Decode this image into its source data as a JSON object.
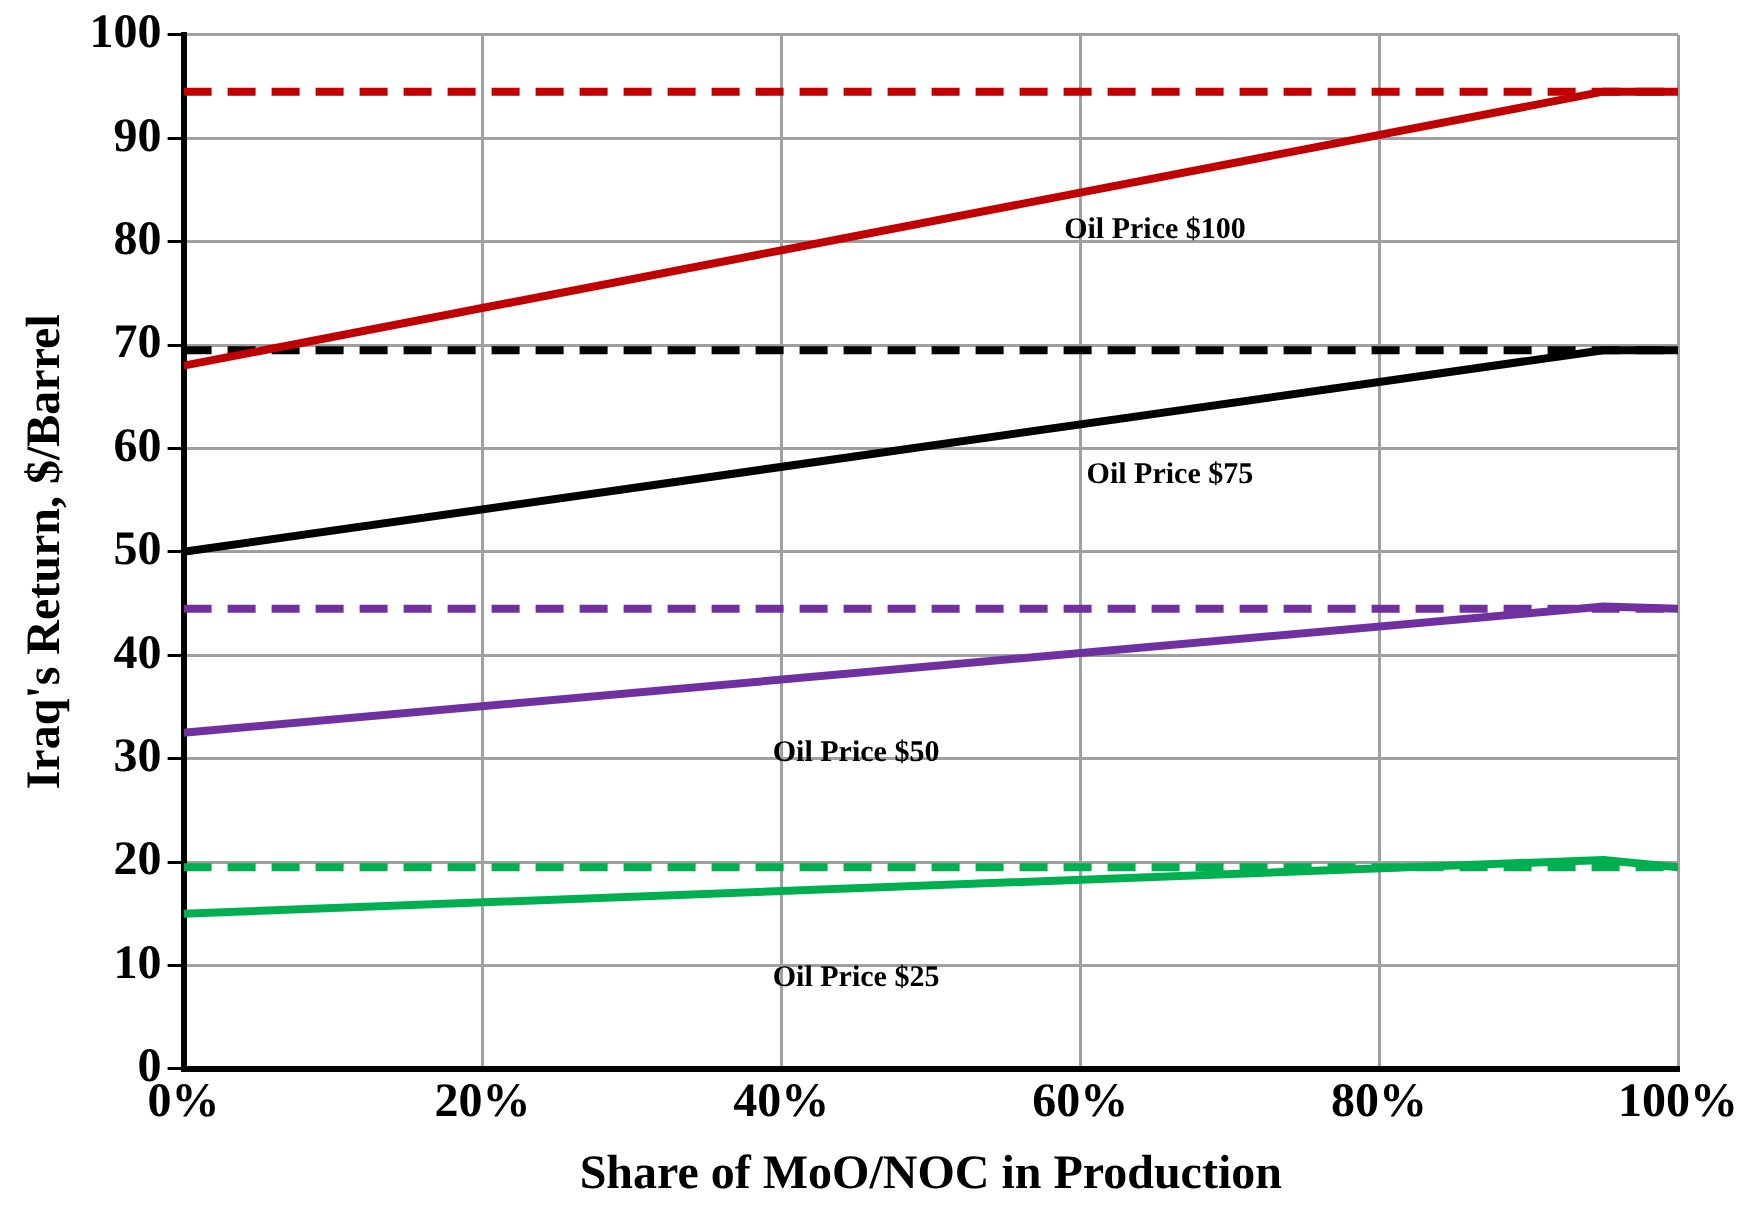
{
  "chart_data": {
    "type": "line",
    "xlabel": "Share of MoO/NOC in Production",
    "ylabel": "Iraq's Return, $/Barrel",
    "xlim": [
      0,
      100
    ],
    "xticks": [
      {
        "value": 0,
        "label": "0%"
      },
      {
        "value": 20,
        "label": "20%"
      },
      {
        "value": 40,
        "label": "40%"
      },
      {
        "value": 60,
        "label": "60%"
      },
      {
        "value": 80,
        "label": "80%"
      },
      {
        "value": 100,
        "label": "100%"
      }
    ],
    "ylim": [
      0,
      100
    ],
    "yticks": [
      0,
      10,
      20,
      30,
      40,
      50,
      60,
      70,
      80,
      90,
      100
    ],
    "grid": true,
    "legend": false,
    "marker": "none",
    "series": [
      {
        "name": "Oil Price $100",
        "color": "#c00000",
        "x": [
          0,
          95,
          100
        ],
        "values": [
          68,
          94.5,
          94.5
        ],
        "line_style": "solid"
      },
      {
        "color": "#c00000",
        "x": [
          0,
          100
        ],
        "values": [
          94.5,
          94.5
        ],
        "line_style": "dashed"
      },
      {
        "name": "Oil Price $75",
        "color": "#000000",
        "x": [
          0,
          95,
          100
        ],
        "values": [
          50,
          69.5,
          69.5
        ],
        "line_style": "solid"
      },
      {
        "color": "#000000",
        "x": [
          0,
          100
        ],
        "values": [
          69.5,
          69.5
        ],
        "line_style": "dashed"
      },
      {
        "name": "Oil Price $50",
        "color": "#7030a0",
        "x": [
          0,
          95,
          100
        ],
        "values": [
          32.5,
          44.7,
          44.5
        ],
        "line_style": "solid"
      },
      {
        "color": "#7030a0",
        "x": [
          0,
          100
        ],
        "values": [
          44.5,
          44.5
        ],
        "line_style": "dashed"
      },
      {
        "name": "Oil Price $25",
        "color": "#00b050",
        "x": [
          0,
          95,
          100
        ],
        "values": [
          15,
          20.2,
          19.5
        ],
        "line_style": "solid"
      },
      {
        "color": "#00b050",
        "x": [
          0,
          100
        ],
        "values": [
          19.5,
          19.5
        ],
        "line_style": "dashed"
      }
    ]
  }
}
